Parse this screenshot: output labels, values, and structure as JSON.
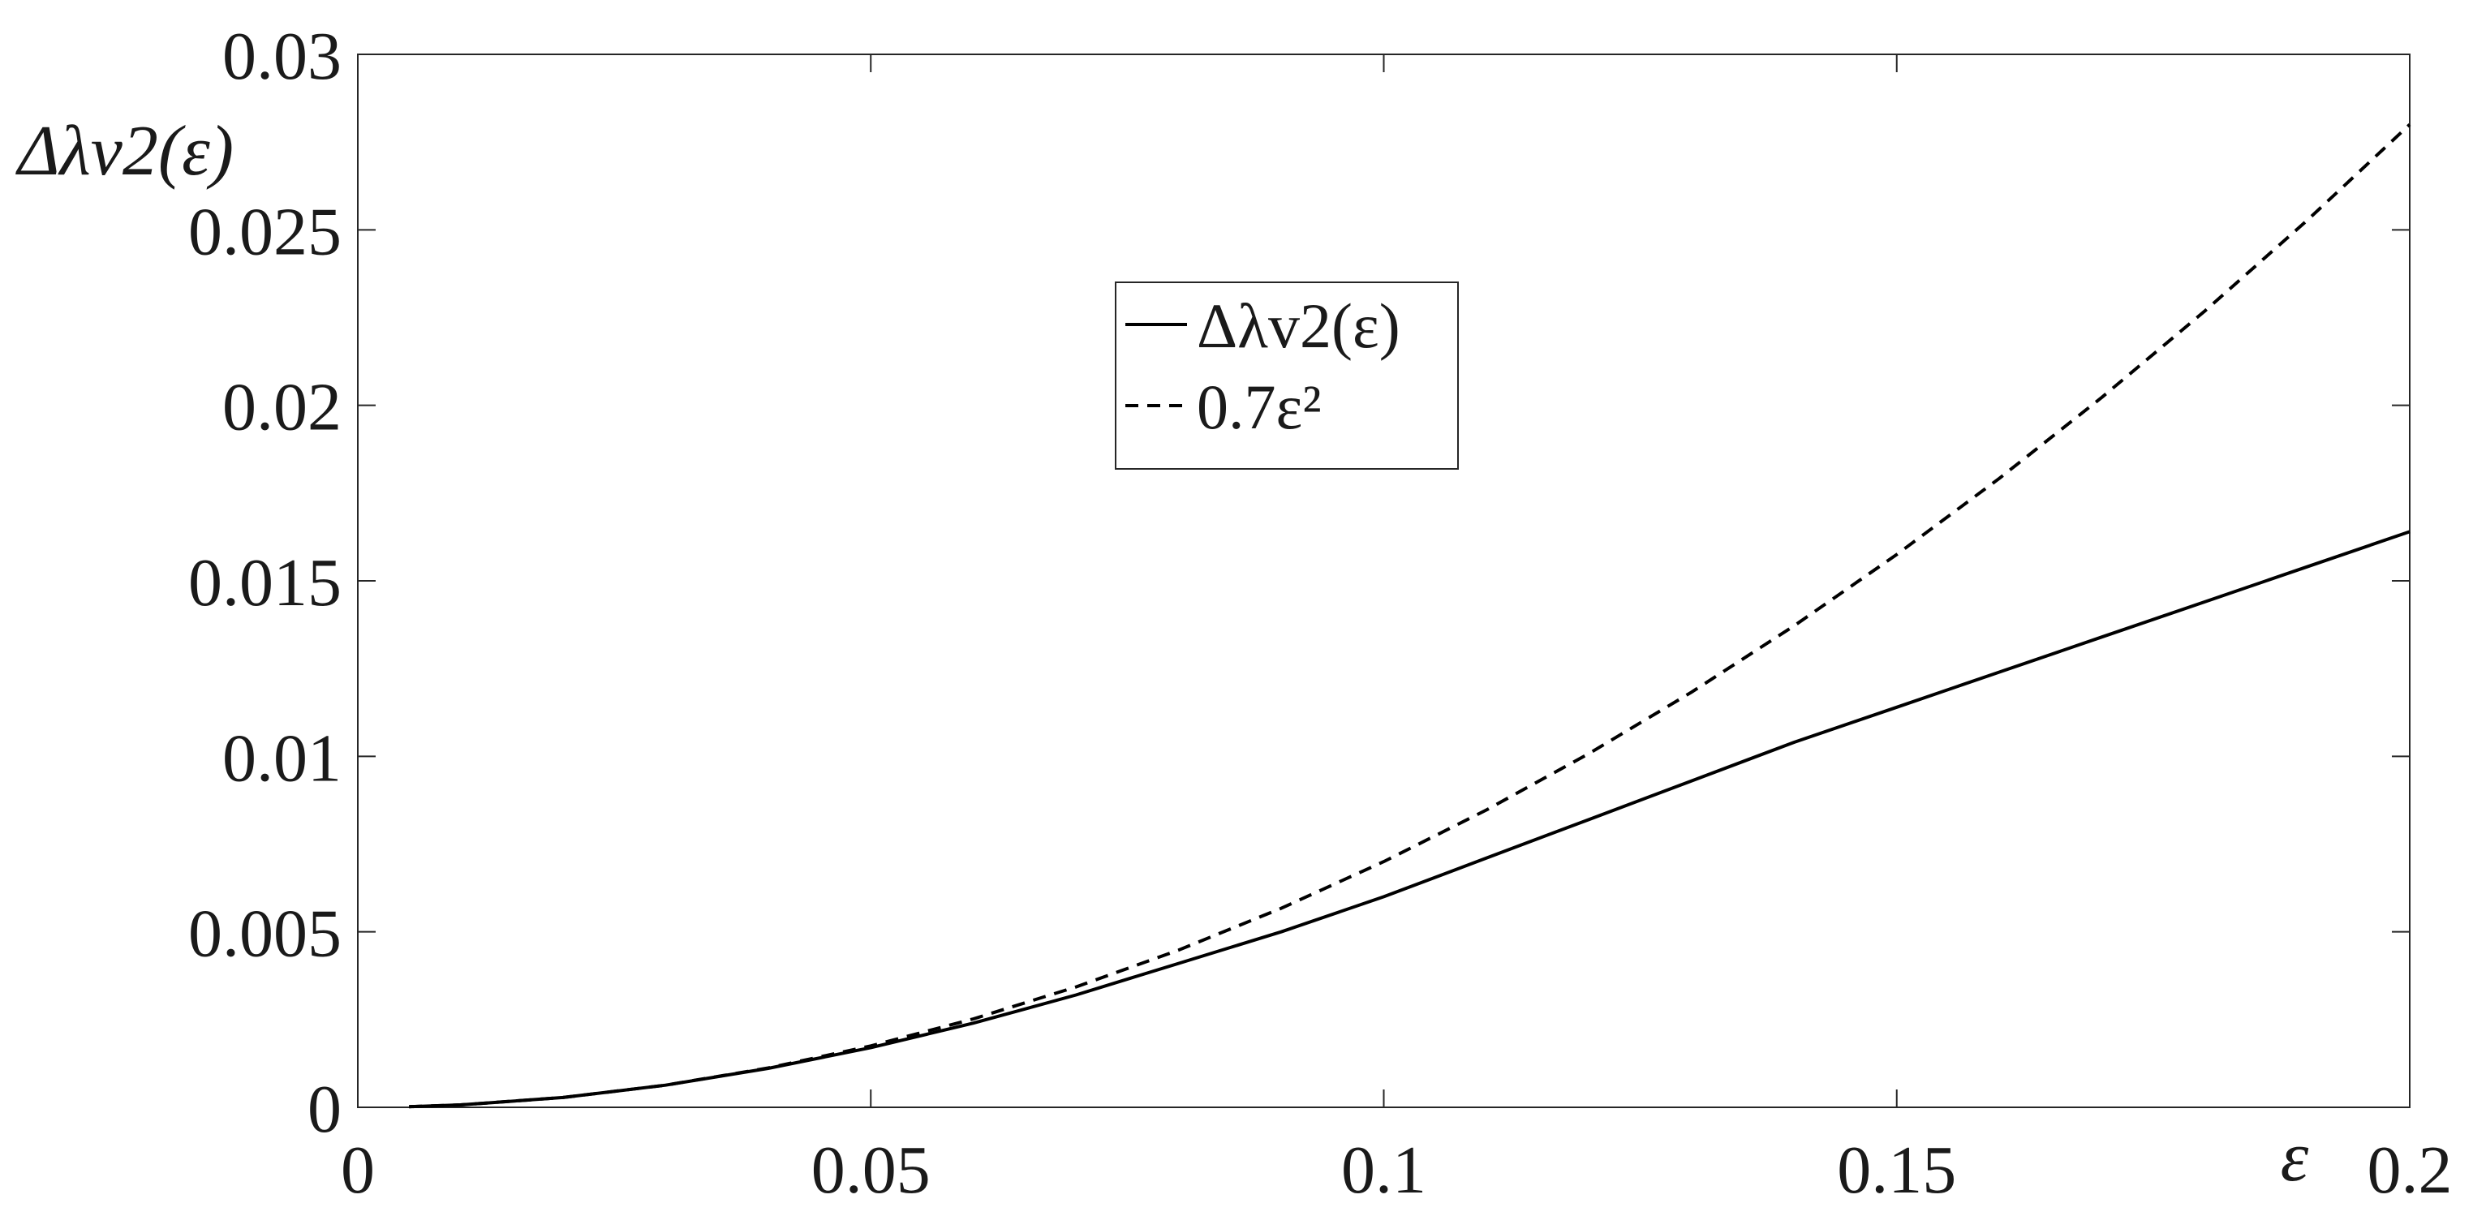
{
  "chart_data": {
    "type": "line",
    "title": "",
    "xlabel": "ε",
    "ylabel": "Δλv2(ε)",
    "xlim": [
      0,
      0.2
    ],
    "ylim": [
      0,
      0.03
    ],
    "x_ticks": [
      0,
      0.05,
      0.1,
      0.15,
      0.2
    ],
    "x_tick_labels": [
      "0",
      "0.05",
      "0.1",
      "0.15",
      "0.2"
    ],
    "y_ticks": [
      0,
      0.005,
      0.01,
      0.015,
      0.02,
      0.025,
      0.03
    ],
    "y_tick_labels": [
      "0",
      "0.005",
      "0.01",
      "0.015",
      "0.02",
      "0.025",
      "0.03"
    ],
    "grid": false,
    "legend_position": "upper-center",
    "colors": {
      "line": "#000000",
      "axes": "#262626",
      "background": "#ffffff"
    },
    "series": [
      {
        "name": "Δλv2(ε)",
        "style": "solid",
        "x": [
          0.005,
          0.01,
          0.02,
          0.03,
          0.04,
          0.05,
          0.06,
          0.07,
          0.08,
          0.09,
          0.1,
          0.11,
          0.12,
          0.13,
          0.14,
          0.15,
          0.16,
          0.17,
          0.18,
          0.19,
          0.2
        ],
        "y": [
          1.75e-05,
          7e-05,
          0.00028,
          0.00063,
          0.00111,
          0.0017,
          0.0024,
          0.0032,
          0.0041,
          0.005,
          0.006,
          0.0071,
          0.0082,
          0.0093,
          0.0104,
          0.0114,
          0.0124,
          0.0134,
          0.0144,
          0.0154,
          0.0164
        ]
      },
      {
        "name": "0.7ε²",
        "style": "dashed",
        "x": [
          0.005,
          0.01,
          0.02,
          0.03,
          0.04,
          0.05,
          0.06,
          0.07,
          0.08,
          0.09,
          0.1,
          0.11,
          0.12,
          0.13,
          0.14,
          0.15,
          0.16,
          0.17,
          0.18,
          0.19,
          0.2
        ],
        "y": [
          1.75e-05,
          7e-05,
          0.00028,
          0.00063,
          0.00112,
          0.00175,
          0.00252,
          0.00343,
          0.00448,
          0.00567,
          0.007,
          0.00847,
          0.01008,
          0.01183,
          0.01372,
          0.01575,
          0.01792,
          0.02023,
          0.02268,
          0.02527,
          0.028
        ]
      }
    ]
  }
}
